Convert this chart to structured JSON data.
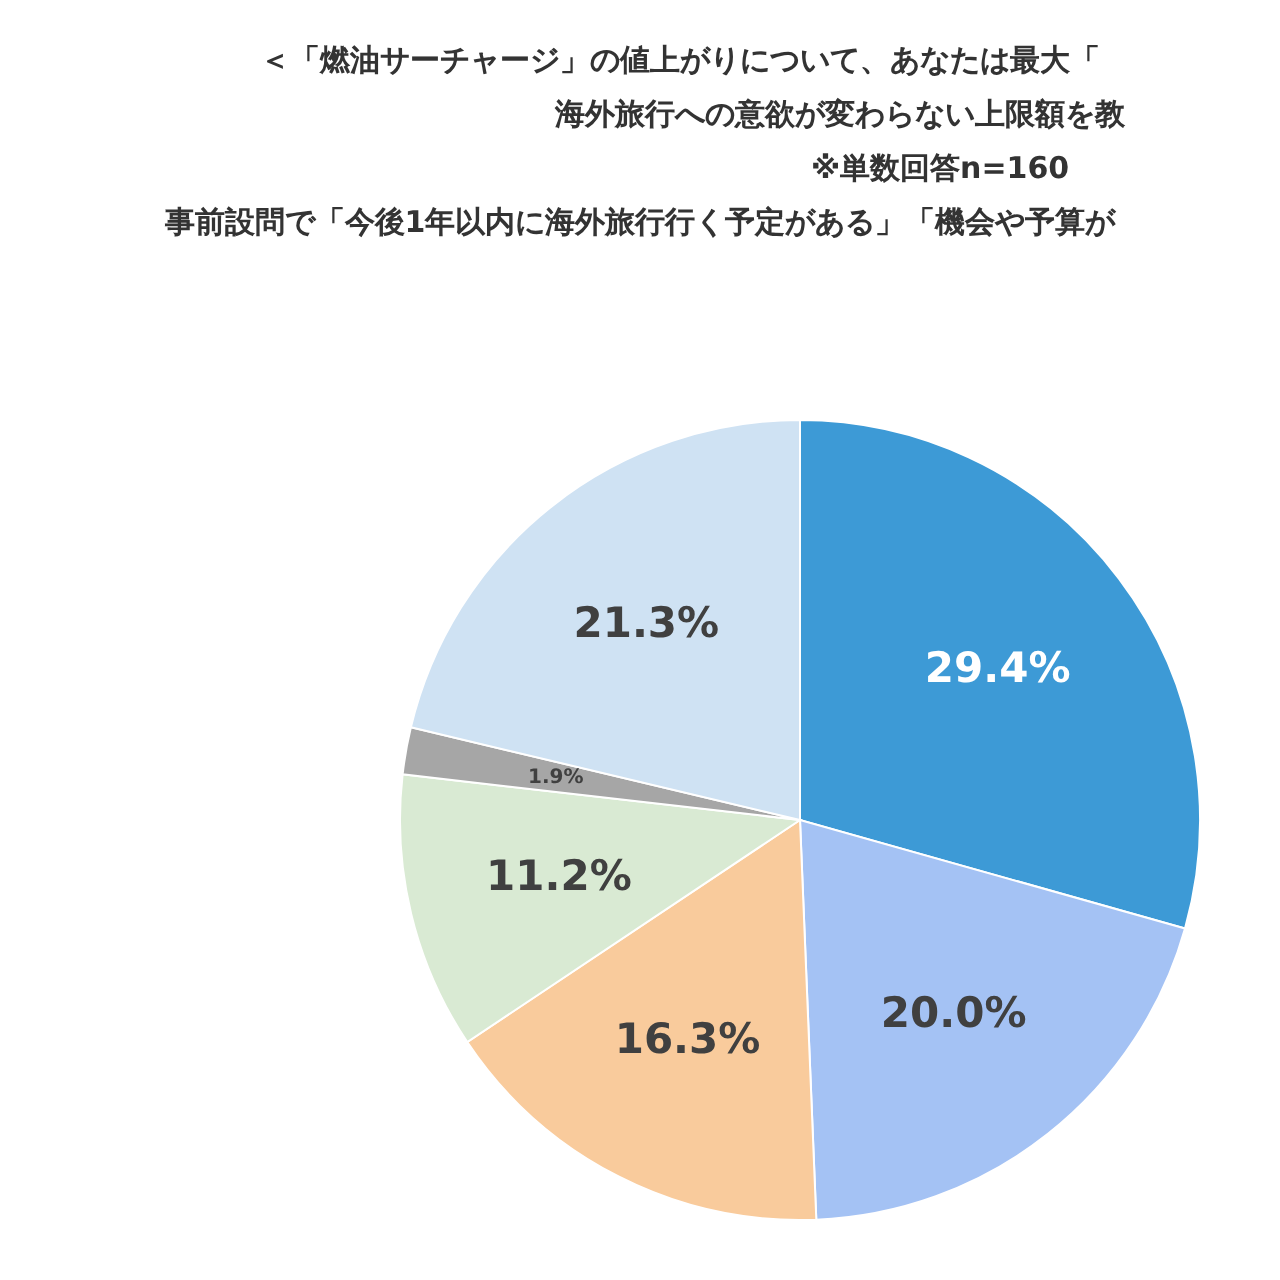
{
  "chart_data": {
    "type": "pie",
    "title": "＜「燃油サーチャージ」の値上がりについて、あなたは最大「",
    "subtitle": "海外旅行への意欲が変わらない上限額を教",
    "annotations": [
      "※単数回答n=160",
      "事前設問で「今後1年以内に海外旅行行く予定がある」「機会や予算が"
    ],
    "categories": [
      null,
      null,
      null,
      null,
      null,
      null
    ],
    "values": [
      29.4,
      20.0,
      16.3,
      11.2,
      1.9,
      21.3
    ],
    "value_labels": [
      "29.4%",
      "20.0%",
      "16.3%",
      "11.2%",
      "1.9%",
      "21.3%"
    ],
    "colors": [
      "#3d9ad6",
      "#a4c2f4",
      "#f9cb9c",
      "#d9ead3",
      "#a6a6a6",
      "#cfe2f3"
    ]
  }
}
